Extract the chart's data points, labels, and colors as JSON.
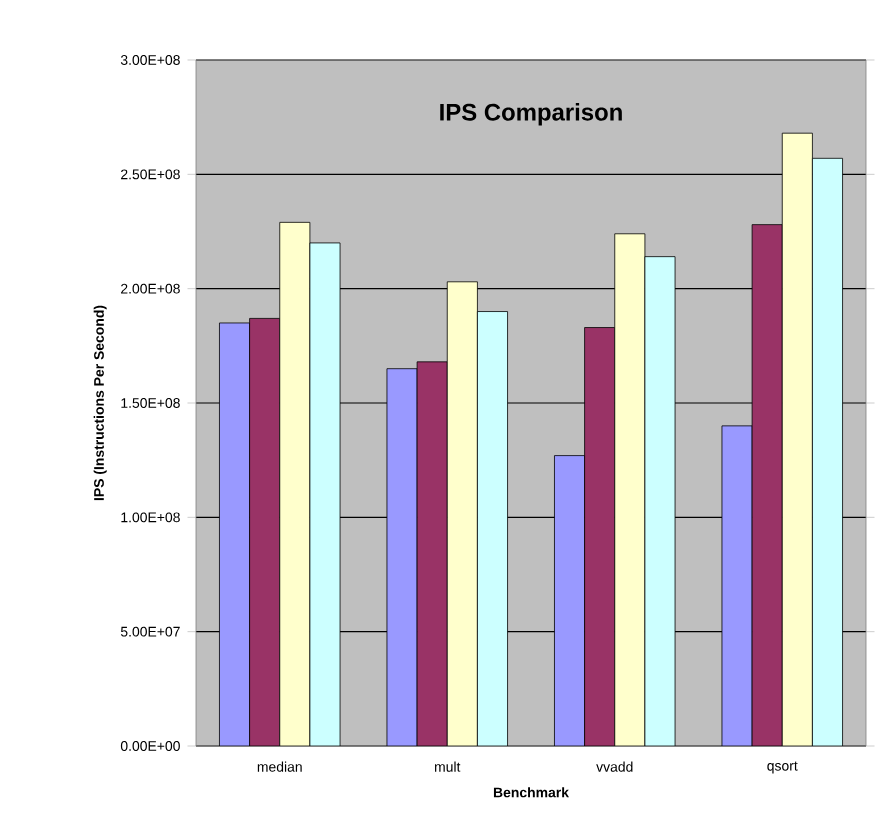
{
  "chart_data": {
    "type": "bar",
    "title": "IPS Comparison",
    "xlabel": "Benchmark",
    "ylabel": "IPS (Instructions Per Second)",
    "categories": [
      "median",
      "mult",
      "vvadd",
      "qsort"
    ],
    "series": [
      {
        "color": "#9999ff",
        "values": [
          185000000,
          165000000,
          127000000,
          140000000
        ]
      },
      {
        "color": "#993366",
        "values": [
          187000000,
          168000000,
          183000000,
          228000000
        ]
      },
      {
        "color": "#ffffcc",
        "values": [
          229000000,
          203000000,
          224000000,
          268000000
        ]
      },
      {
        "color": "#ccffff",
        "values": [
          220000000,
          190000000,
          214000000,
          257000000
        ]
      }
    ],
    "ylim": [
      0,
      300000000
    ],
    "yticks": [
      {
        "value": 0,
        "label": "0.00E+00"
      },
      {
        "value": 50000000,
        "label": "5.00E+07"
      },
      {
        "value": 100000000,
        "label": "1.00E+08"
      },
      {
        "value": 150000000,
        "label": "1.50E+08"
      },
      {
        "value": 200000000,
        "label": "2.00E+08"
      },
      {
        "value": 250000000,
        "label": "2.50E+08"
      },
      {
        "value": 300000000,
        "label": "3.00E+08"
      }
    ],
    "grid": "y"
  }
}
